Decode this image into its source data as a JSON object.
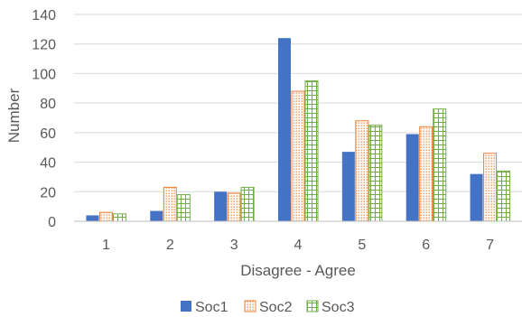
{
  "chart_data": {
    "type": "bar",
    "categories": [
      "1",
      "2",
      "3",
      "4",
      "5",
      "6",
      "7"
    ],
    "series": [
      {
        "name": "Soc1",
        "values": [
          4,
          7,
          20,
          124,
          47,
          59,
          32
        ],
        "color": "#4472c4",
        "pattern": "solid"
      },
      {
        "name": "Soc2",
        "values": [
          6,
          23,
          19,
          88,
          68,
          64,
          46
        ],
        "color": "#ed7d31",
        "pattern": "dots"
      },
      {
        "name": "Soc3",
        "values": [
          5,
          18,
          23,
          95,
          65,
          76,
          34
        ],
        "color": "#70ad47",
        "pattern": "grid"
      }
    ],
    "xlabel": "Disagree - Agree",
    "ylabel": "Number",
    "ylim": [
      0,
      140
    ],
    "yticks": [
      0,
      20,
      40,
      60,
      80,
      100,
      120,
      140
    ],
    "grid": true,
    "legend": "bottom"
  }
}
